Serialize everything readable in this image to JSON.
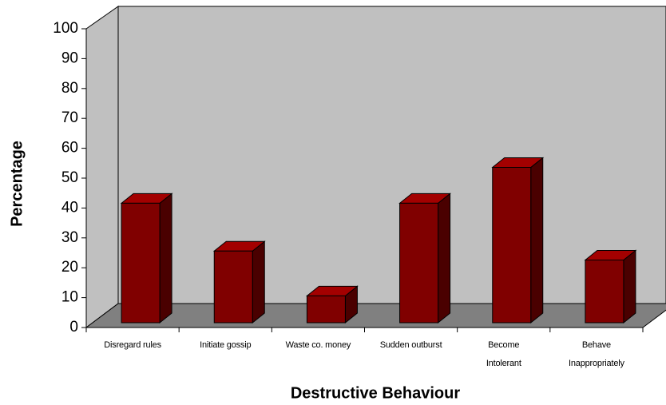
{
  "chart_data": {
    "type": "bar3d",
    "x_label": "Destructive Behaviour",
    "y_label": "Percentage",
    "categories": [
      "Disregard rules",
      "Initiate gossip",
      "Waste co. money",
      "Sudden outburst",
      "Become\nIntolerant",
      "Behave\nInappropriately"
    ],
    "values": [
      40,
      24,
      9,
      40,
      52,
      21
    ],
    "color": "#800000",
    "ylim": [
      0,
      100
    ],
    "yticks": [
      0,
      10,
      20,
      30,
      40,
      50,
      60,
      70,
      80,
      90,
      100
    ],
    "grid": false
  }
}
